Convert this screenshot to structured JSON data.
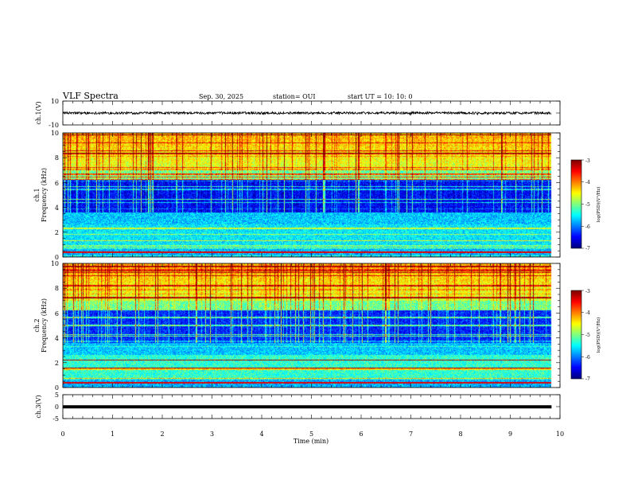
{
  "header": {
    "title": "VLF Spectra",
    "date": "Sep. 30, 2025",
    "station": "station= OUI",
    "start": "start  UT =   10: 10: 0"
  },
  "chart_data": [
    {
      "type": "line",
      "panel": "ch1-waveform",
      "ylabel": "ch.1(V)",
      "ylim": [
        -10,
        10
      ],
      "ytick_labels": [
        "10",
        "-10"
      ],
      "x_end_min": 9.83,
      "baseline": 0,
      "amplitude_approx": 1
    },
    {
      "type": "heatmap",
      "panel": "ch1-spectrogram",
      "ylabel_line1": "ch.1",
      "ylabel_line2": "Frequency (kHz)",
      "ylim": [
        0,
        10
      ],
      "ytick_labels": [
        "0",
        "2",
        "4",
        "6",
        "8",
        "10"
      ],
      "x_end_min": 9.83,
      "colorbar": {
        "label": "log(PSD)(V²/Hz)",
        "range": [
          -7,
          -3
        ],
        "tick_labels": [
          "-3",
          "-4",
          "-5",
          "-6",
          "-7"
        ]
      }
    },
    {
      "type": "heatmap",
      "panel": "ch2-spectrogram",
      "ylabel_line1": "ch.2",
      "ylabel_line2": "Frequency (kHz)",
      "ylim": [
        0,
        10
      ],
      "ytick_labels": [
        "0",
        "2",
        "4",
        "6",
        "8",
        "10"
      ],
      "x_end_min": 9.83,
      "colorbar": {
        "label": "log(PSD)(V²/Hz)",
        "range": [
          -7,
          -3
        ],
        "tick_labels": [
          "-3",
          "-4",
          "-5",
          "-6",
          "-7"
        ]
      }
    },
    {
      "type": "line",
      "panel": "ch3-waveform",
      "ylabel": "ch.3(V)",
      "ylim": [
        -5,
        5
      ],
      "ytick_labels": [
        "5",
        "0",
        "-5"
      ],
      "x_end_min": 9.83,
      "baseline": -0.1,
      "xlabel": "Time (min)",
      "xlim": [
        0,
        10
      ],
      "xtick_labels": [
        "0",
        "1",
        "2",
        "3",
        "4",
        "5",
        "6",
        "7",
        "8",
        "9",
        "10"
      ]
    }
  ]
}
